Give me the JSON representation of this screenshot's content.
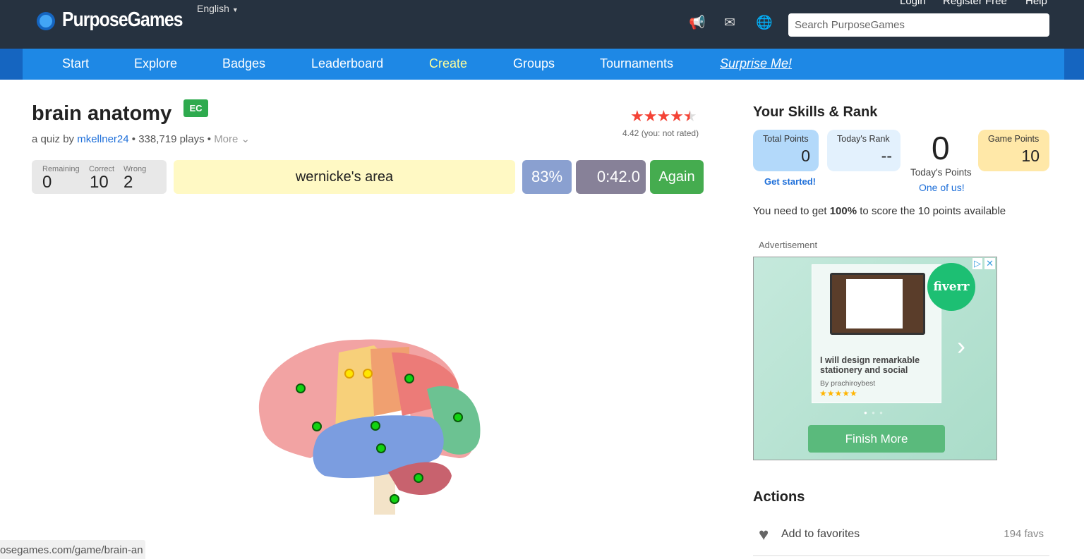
{
  "header": {
    "logo": "PurposeGames",
    "language": "English",
    "top_links": [
      "Login",
      "Register Free",
      "Help"
    ],
    "icons": [
      "megaphone-icon",
      "mail-icon",
      "globe-icon"
    ],
    "search_placeholder": "Search PurposeGames"
  },
  "nav": {
    "items": [
      "Start",
      "Explore",
      "Badges",
      "Leaderboard",
      "Create",
      "Groups",
      "Tournaments",
      "Surprise Me!"
    ],
    "highlight_color": "#ffff99"
  },
  "game": {
    "title": "brain anatomy",
    "badge": "EC",
    "by_prefix": "a quiz by",
    "author": "mkellner24",
    "plays": "338,719 plays",
    "more": "More",
    "rating": 4.42,
    "rating_text": "4.42 (you: not rated)",
    "stats": {
      "remaining_label": "Remaining",
      "remaining": "0",
      "correct_label": "Correct",
      "correct": "10",
      "wrong_label": "Wrong",
      "wrong": "2"
    },
    "prompt": "wernicke's area",
    "percent": "83%",
    "time": "0:42.0",
    "again": "Again",
    "markers": [
      "correct",
      "correct",
      "wrong",
      "wrong",
      "correct",
      "correct",
      "correct",
      "correct",
      "correct",
      "correct",
      "correct",
      "correct"
    ]
  },
  "skills": {
    "title": "Your Skills & Rank",
    "total_label": "Total Points",
    "total": "0",
    "get_started": "Get started!",
    "rank_label": "Today's Rank",
    "rank": "--",
    "today_points": "0",
    "today_label": "Today's Points",
    "one_of_us": "One of us!",
    "game_points_label": "Game Points",
    "game_points": "10",
    "need_pre": "You need to get ",
    "need_bold": "100%",
    "need_post": " to score the 10 points available"
  },
  "ad": {
    "label": "Advertisement",
    "brand": "fiverr",
    "title": "I will design remarkable stationery and social",
    "by": "By prachiroybest",
    "cta": "Finish More"
  },
  "actions": {
    "title": "Actions",
    "fav": "Add to favorites",
    "fav_count": "194 favs"
  },
  "status_url": "osegames.com/game/brain-an"
}
